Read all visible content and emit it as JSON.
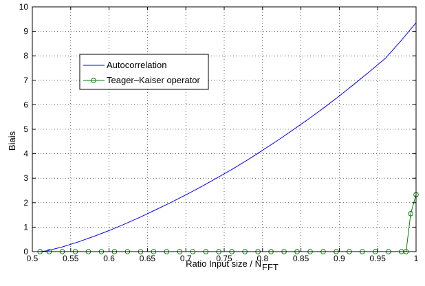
{
  "chart_data": {
    "type": "line",
    "xlabel": "Ratio Input size / N",
    "xlabel_subscript": "FFT",
    "ylabel": "Biais",
    "xlim": [
      0.5,
      1.0
    ],
    "ylim": [
      0,
      10
    ],
    "xticks": [
      "0.5",
      "0.55",
      "0.6",
      "0.65",
      "0.7",
      "0.75",
      "0.8",
      "0.85",
      "0.9",
      "0.95",
      "1"
    ],
    "yticks": [
      "0",
      "1",
      "2",
      "3",
      "4",
      "5",
      "6",
      "7",
      "8",
      "9",
      "10"
    ],
    "grid": true,
    "legend_position": "upper-left",
    "series": [
      {
        "name": "Autocorrelation",
        "color": "#0000ff",
        "marker": "none",
        "x": [
          0.51,
          0.52,
          0.54,
          0.56,
          0.58,
          0.6,
          0.62,
          0.64,
          0.66,
          0.68,
          0.7,
          0.72,
          0.74,
          0.76,
          0.78,
          0.8,
          0.82,
          0.84,
          0.86,
          0.88,
          0.9,
          0.92,
          0.94,
          0.96,
          0.98,
          1.0
        ],
        "y": [
          0.0,
          0.04,
          0.2,
          0.4,
          0.62,
          0.86,
          1.12,
          1.4,
          1.7,
          2.0,
          2.32,
          2.65,
          3.0,
          3.36,
          3.74,
          4.14,
          4.55,
          4.98,
          5.42,
          5.88,
          6.36,
          6.86,
          7.37,
          7.9,
          8.6,
          9.35
        ]
      },
      {
        "name": "Teager–Kaiser operator",
        "color": "#008000",
        "marker": "circle",
        "x": [
          0.51,
          0.522,
          0.539,
          0.556,
          0.573,
          0.59,
          0.607,
          0.624,
          0.641,
          0.658,
          0.675,
          0.692,
          0.709,
          0.726,
          0.743,
          0.76,
          0.777,
          0.794,
          0.811,
          0.828,
          0.845,
          0.862,
          0.879,
          0.896,
          0.913,
          0.93,
          0.947,
          0.964,
          0.981,
          0.987,
          0.993,
          1.0
        ],
        "y": [
          0,
          0,
          0,
          0,
          0,
          0,
          0,
          0,
          0,
          0,
          0,
          0,
          0,
          0,
          0,
          0,
          0,
          0,
          0,
          0,
          0,
          0,
          0,
          0,
          0,
          0,
          0,
          0,
          0,
          0,
          1.55,
          2.33
        ]
      }
    ]
  }
}
